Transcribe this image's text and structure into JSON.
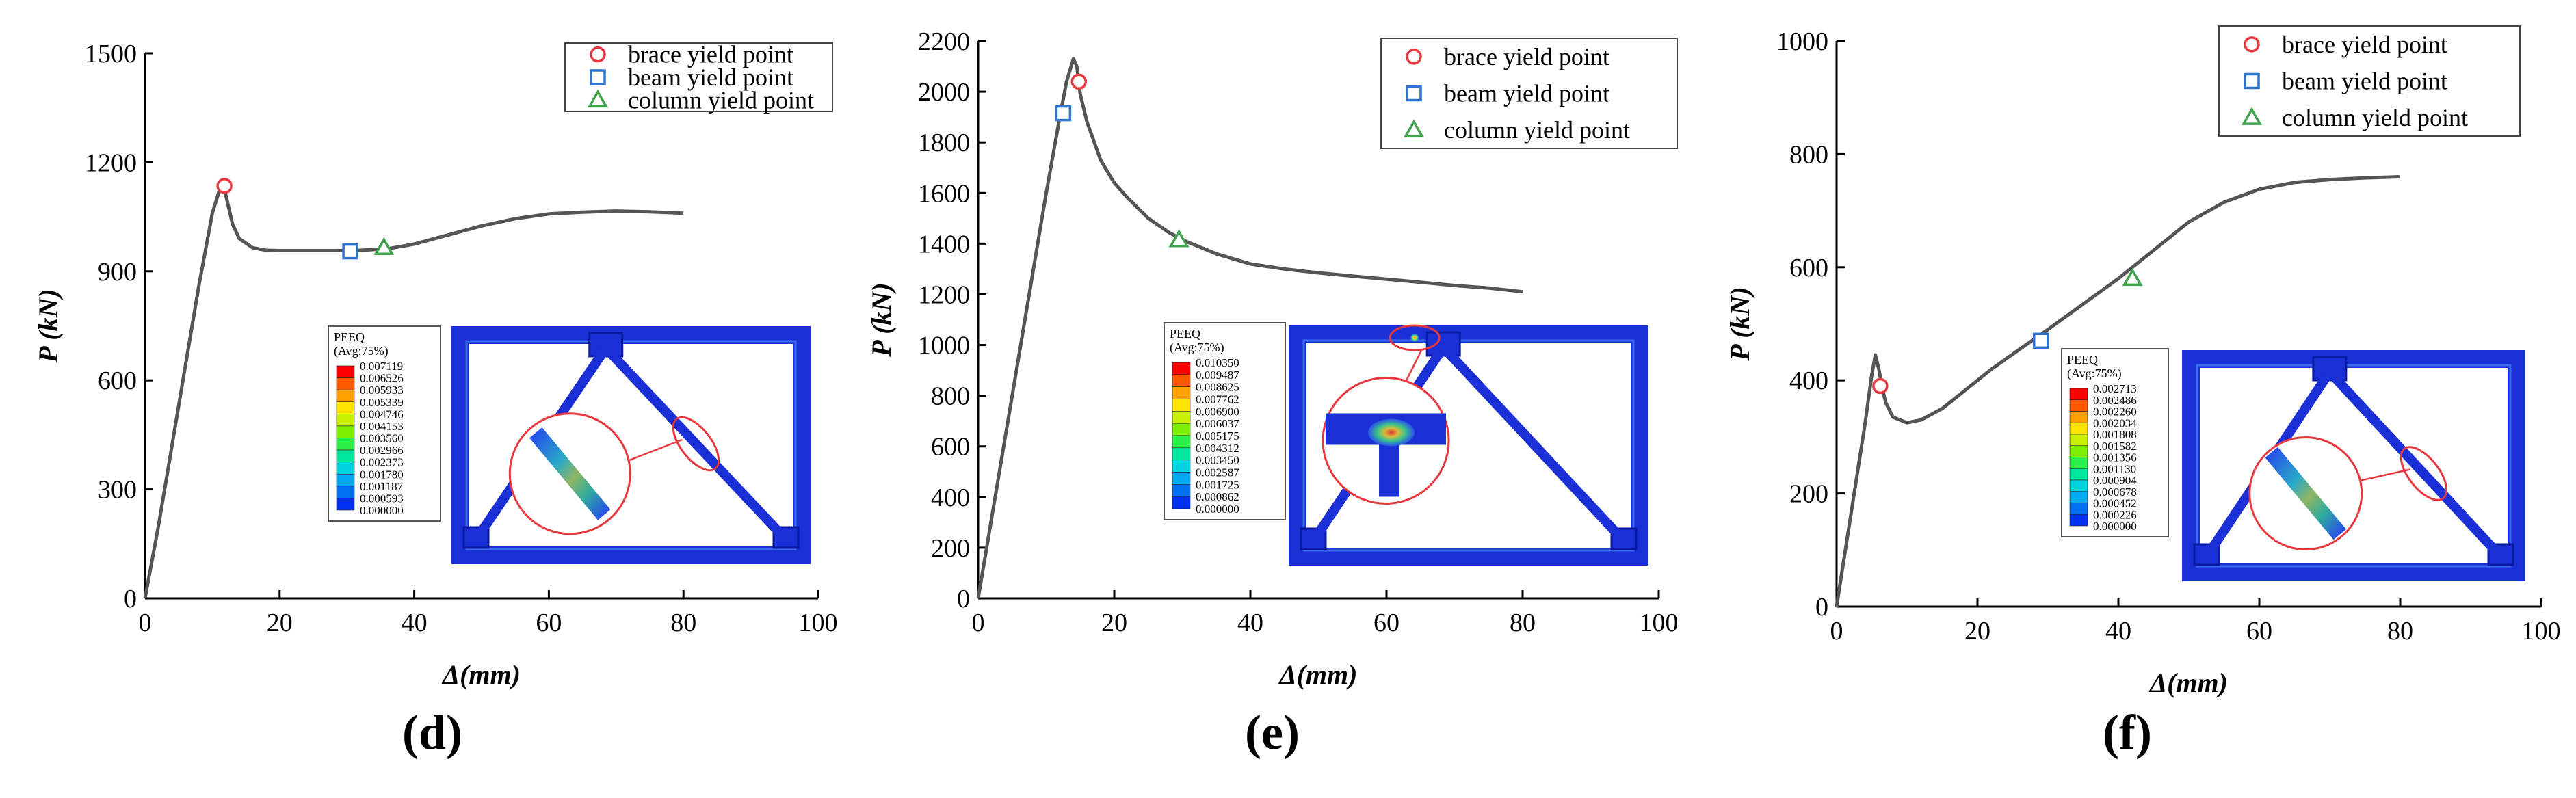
{
  "colors": {
    "curve": "#555555",
    "brace_marker": "#e8383d",
    "beam_marker": "#2f74d0",
    "column_marker": "#3fa34d",
    "frame_blue": "#1a2fd6",
    "frame_light": "#3b6cf0"
  },
  "chart_data": [
    {
      "type": "line",
      "panel_label": "(d)",
      "xlabel": "Δ(mm)",
      "ylabel": "P (kN)",
      "xlim": [
        0,
        100
      ],
      "ylim": [
        0,
        1500
      ],
      "xticks": [
        "0",
        "20",
        "40",
        "60",
        "80",
        "100"
      ],
      "yticks": [
        "0",
        "300",
        "600",
        "900",
        "1200",
        "1500"
      ],
      "legend_position": "top-right",
      "legend": [
        "brace yield point",
        "beam yield point",
        "column yield point"
      ],
      "series": [
        {
          "x": [
            0,
            2,
            4,
            6,
            8,
            10,
            11,
            11.5,
            12,
            13,
            14,
            16,
            18,
            20,
            24,
            28,
            32,
            36,
            40,
            45,
            50,
            55,
            60,
            65,
            70,
            75,
            80
          ],
          "y": [
            0,
            200,
            420,
            640,
            860,
            1060,
            1120,
            1135,
            1110,
            1030,
            990,
            965,
            958,
            957,
            957,
            957,
            958,
            962,
            975,
            1000,
            1025,
            1045,
            1058,
            1063,
            1066,
            1064,
            1060
          ]
        }
      ],
      "points": [
        {
          "kind": "brace",
          "x": 11.8,
          "y": 1135
        },
        {
          "kind": "beam",
          "x": 30.5,
          "y": 955
        },
        {
          "kind": "column",
          "x": 35.5,
          "y": 965
        }
      ],
      "contour": {
        "title": "PEEQ",
        "subtitle": "(Avg:75%)",
        "levels": [
          "0.007119",
          "0.006526",
          "0.005933",
          "0.005339",
          "0.004746",
          "0.004153",
          "0.003560",
          "0.002966",
          "0.002373",
          "0.001780",
          "0.001187",
          "0.000593",
          "0.000000"
        ]
      }
    },
    {
      "type": "line",
      "panel_label": "(e)",
      "xlabel": "Δ(mm)",
      "ylabel": "P (kN)",
      "xlim": [
        0,
        100
      ],
      "ylim": [
        0,
        2200
      ],
      "xticks": [
        "0",
        "20",
        "40",
        "60",
        "80",
        "100"
      ],
      "yticks": [
        "0",
        "200",
        "400",
        "600",
        "800",
        "1000",
        "1200",
        "1400",
        "1600",
        "1800",
        "2000",
        "2200"
      ],
      "legend_position": "top-right",
      "legend": [
        "brace yield point",
        "beam yield point",
        "column yield point"
      ],
      "series": [
        {
          "x": [
            0,
            2,
            4,
            6,
            8,
            10,
            12,
            13,
            14,
            14.5,
            15,
            16,
            18,
            20,
            22,
            25,
            28,
            30,
            35,
            40,
            45,
            50,
            55,
            60,
            65,
            70,
            75,
            80
          ],
          "y": [
            0,
            320,
            640,
            960,
            1280,
            1600,
            1900,
            2040,
            2130,
            2100,
            1990,
            1880,
            1730,
            1640,
            1580,
            1500,
            1445,
            1415,
            1360,
            1320,
            1300,
            1285,
            1272,
            1260,
            1248,
            1235,
            1225,
            1210
          ]
        }
      ],
      "points": [
        {
          "kind": "brace",
          "x": 14.8,
          "y": 2040
        },
        {
          "kind": "beam",
          "x": 12.5,
          "y": 1915
        },
        {
          "kind": "column",
          "x": 29.5,
          "y": 1415
        }
      ],
      "contour": {
        "title": "PEEQ",
        "subtitle": "(Avg:75%)",
        "levels": [
          "0.010350",
          "0.009487",
          "0.008625",
          "0.007762",
          "0.006900",
          "0.006037",
          "0.005175",
          "0.004312",
          "0.003450",
          "0.002587",
          "0.001725",
          "0.000862",
          "0.000000"
        ]
      }
    },
    {
      "type": "line",
      "panel_label": "(f)",
      "xlabel": "Δ(mm)",
      "ylabel": "P (kN)",
      "xlim": [
        0,
        100
      ],
      "ylim": [
        0,
        1000
      ],
      "xticks": [
        "0",
        "20",
        "40",
        "60",
        "80",
        "100"
      ],
      "yticks": [
        "0",
        "200",
        "400",
        "600",
        "800",
        "1000"
      ],
      "legend_position": "top-right",
      "legend": [
        "brace yield point",
        "beam yield point",
        "column yield point"
      ],
      "series": [
        {
          "x": [
            0,
            1,
            2,
            3,
            4,
            5,
            5.5,
            6,
            6.5,
            7,
            8,
            10,
            12,
            15,
            18,
            22,
            26,
            30,
            35,
            40,
            45,
            50,
            55,
            60,
            65,
            70,
            75,
            80
          ],
          "y": [
            0,
            80,
            160,
            240,
            320,
            410,
            445,
            420,
            385,
            360,
            335,
            325,
            330,
            350,
            380,
            420,
            455,
            490,
            535,
            580,
            630,
            680,
            715,
            738,
            750,
            755,
            758,
            760
          ]
        }
      ],
      "points": [
        {
          "kind": "brace",
          "x": 6.2,
          "y": 390
        },
        {
          "kind": "beam",
          "x": 29,
          "y": 470
        },
        {
          "kind": "column",
          "x": 42,
          "y": 580
        }
      ],
      "contour": {
        "title": "PEEQ",
        "subtitle": "(Avg:75%)",
        "levels": [
          "0.002713",
          "0.002486",
          "0.002260",
          "0.002034",
          "0.001808",
          "0.001582",
          "0.001356",
          "0.001130",
          "0.000904",
          "0.000678",
          "0.000452",
          "0.000226",
          "0.000000"
        ]
      }
    }
  ]
}
